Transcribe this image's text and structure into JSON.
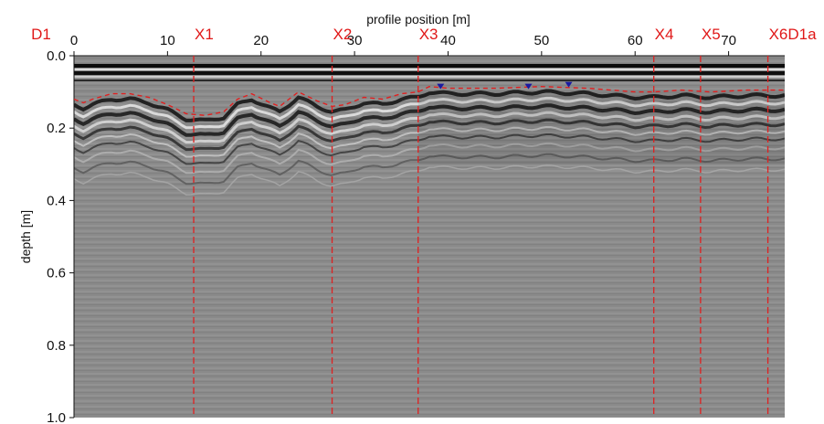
{
  "chart_data": {
    "type": "heatmap",
    "title": "",
    "xlabel": "profile position [m]",
    "ylabel": "depth [m]",
    "xlim": [
      0,
      76
    ],
    "ylim": [
      0,
      1.0
    ],
    "y_inverted": true,
    "x_ticks": [
      0,
      10,
      20,
      30,
      40,
      50,
      60,
      70
    ],
    "y_ticks": [
      0.0,
      0.2,
      0.4,
      0.6,
      0.8,
      1.0
    ],
    "y_tick_labels": [
      "0.0",
      "0.2",
      "0.4",
      "0.6",
      "0.8",
      "1.0"
    ],
    "colormap": "grayscale",
    "grid": false,
    "markers": [
      {
        "label": "D1",
        "x": 0
      },
      {
        "label": "X1",
        "x": 12.8
      },
      {
        "label": "X2",
        "x": 27.6
      },
      {
        "label": "X3",
        "x": 36.8
      },
      {
        "label": "X4",
        "x": 62.0
      },
      {
        "label": "X5",
        "x": 67.0
      },
      {
        "label": "X6",
        "x": 74.2
      },
      {
        "label": "D1a",
        "x": 76
      }
    ],
    "interpreted_interface": {
      "color": "#e02020",
      "style": "dashed",
      "points": [
        [
          0,
          0.12
        ],
        [
          1,
          0.13
        ],
        [
          2,
          0.12
        ],
        [
          4,
          0.105
        ],
        [
          6,
          0.105
        ],
        [
          8,
          0.115
        ],
        [
          10,
          0.135
        ],
        [
          12,
          0.16
        ],
        [
          14,
          0.165
        ],
        [
          16,
          0.155
        ],
        [
          17.5,
          0.12
        ],
        [
          19,
          0.105
        ],
        [
          21,
          0.13
        ],
        [
          22,
          0.14
        ],
        [
          23,
          0.12
        ],
        [
          24,
          0.1
        ],
        [
          26,
          0.125
        ],
        [
          27.6,
          0.14
        ],
        [
          29,
          0.135
        ],
        [
          31,
          0.115
        ],
        [
          33,
          0.12
        ],
        [
          35,
          0.105
        ],
        [
          36.8,
          0.1
        ],
        [
          38,
          0.085
        ],
        [
          40,
          0.09
        ],
        [
          45,
          0.09
        ],
        [
          50,
          0.085
        ],
        [
          55,
          0.09
        ],
        [
          60,
          0.1
        ],
        [
          62,
          0.1
        ],
        [
          65,
          0.095
        ],
        [
          68,
          0.1
        ],
        [
          72,
          0.095
        ],
        [
          76,
          0.095
        ]
      ]
    },
    "point_marks": {
      "color": "#1a1aa0",
      "x": [
        39.2,
        48.6,
        52.9
      ],
      "y": [
        0.085,
        0.085,
        0.08
      ]
    },
    "colors": {
      "marker_line": "#e02020",
      "marker_label": "#e01818",
      "axis": "#111111"
    }
  }
}
